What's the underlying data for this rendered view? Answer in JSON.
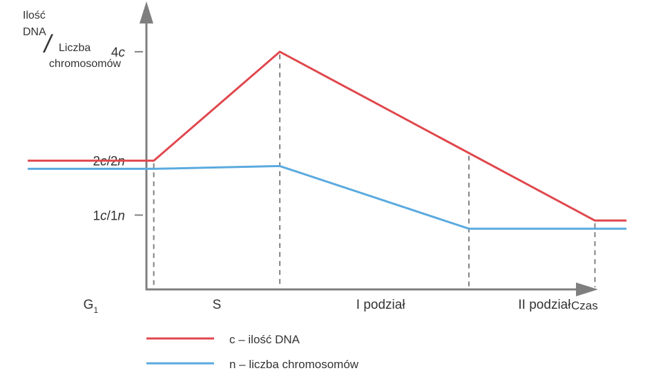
{
  "chart_data": {
    "type": "line",
    "ylabel_lines": [
      "Ilość",
      "DNA",
      "Liczba",
      "chromosomów"
    ],
    "ylabel_separator": "/",
    "xlabel": "Czas",
    "yticks": [
      {
        "value": 1,
        "parts": [
          {
            "t": "1",
            "i": false
          },
          {
            "t": "c",
            "i": true
          },
          {
            "t": "/1",
            "i": false
          },
          {
            "t": "n",
            "i": true
          }
        ]
      },
      {
        "value": 2,
        "parts": [
          {
            "t": "2",
            "i": false
          },
          {
            "t": "c",
            "i": true
          },
          {
            "t": "/2",
            "i": false
          },
          {
            "t": "n",
            "i": true
          }
        ]
      },
      {
        "value": 4,
        "parts": [
          {
            "t": "4",
            "i": false
          },
          {
            "t": "c",
            "i": true
          }
        ]
      }
    ],
    "categories": [
      {
        "label": "G",
        "sub": "1",
        "center": 0.5
      },
      {
        "label": "S",
        "sub": "",
        "center": 1.5
      },
      {
        "label": "I podział",
        "sub": "",
        "center": 2.8
      },
      {
        "label": "II podział",
        "sub": "",
        "center": 4.1
      }
    ],
    "phase_boundaries": [
      1,
      2,
      3.5,
      4.5
    ],
    "series": [
      {
        "name": "c",
        "color": "#e0474c",
        "x": [
          0,
          1,
          2,
          4.5,
          4.75
        ],
        "y": [
          2,
          2,
          4,
          0.9,
          0.9
        ]
      },
      {
        "name": "n",
        "color": "#5aaadf",
        "x": [
          0,
          1,
          2,
          3.5,
          4.75
        ],
        "y": [
          1.85,
          1.85,
          1.9,
          0.75,
          0.75
        ]
      }
    ],
    "legend": [
      {
        "text": "c – ilość DNA",
        "color": "#e0474c"
      },
      {
        "text": "n – liczba chromosomów",
        "color": "#5aaadf"
      }
    ],
    "legend_position": "bottom-center",
    "xlim": [
      -0.22,
      5.04
    ],
    "ylim": [
      -1.9,
      4.95
    ]
  }
}
